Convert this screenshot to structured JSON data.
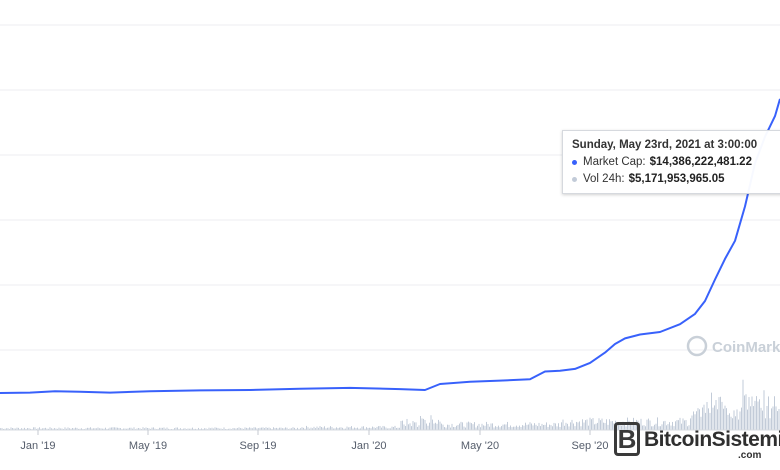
{
  "chart_data": {
    "type": "line",
    "x_ticks": [
      "Jan '19",
      "May '19",
      "Sep '19",
      "Jan '20",
      "May '20",
      "Sep '20"
    ],
    "series": [
      {
        "name": "Market Cap",
        "color": "#3861fb",
        "points": [
          [
            0,
            0.086
          ],
          [
            30,
            0.087
          ],
          [
            55,
            0.09
          ],
          [
            80,
            0.089
          ],
          [
            110,
            0.087
          ],
          [
            150,
            0.09
          ],
          [
            200,
            0.092
          ],
          [
            250,
            0.093
          ],
          [
            300,
            0.096
          ],
          [
            350,
            0.098
          ],
          [
            400,
            0.095
          ],
          [
            425,
            0.093
          ],
          [
            440,
            0.107
          ],
          [
            470,
            0.112
          ],
          [
            500,
            0.115
          ],
          [
            530,
            0.118
          ],
          [
            545,
            0.136
          ],
          [
            560,
            0.138
          ],
          [
            575,
            0.142
          ],
          [
            590,
            0.156
          ],
          [
            605,
            0.18
          ],
          [
            615,
            0.2
          ],
          [
            625,
            0.213
          ],
          [
            640,
            0.222
          ],
          [
            660,
            0.228
          ],
          [
            680,
            0.246
          ],
          [
            695,
            0.27
          ],
          [
            705,
            0.3
          ],
          [
            715,
            0.35
          ],
          [
            725,
            0.398
          ],
          [
            735,
            0.44
          ],
          [
            745,
            0.52
          ],
          [
            755,
            0.62
          ],
          [
            765,
            0.682
          ],
          [
            775,
            0.73
          ],
          [
            780,
            0.77
          ]
        ]
      },
      {
        "name": "Vol 24h",
        "color": "#c2cbd8"
      }
    ],
    "grid": true,
    "watermark": "CoinMark"
  },
  "tooltip": {
    "title": "Sunday, May 23rd, 2021 at 3:00:00",
    "rows": [
      {
        "label": "Market Cap:",
        "value": "$14,386,222,481.22",
        "color": "#3861fb"
      },
      {
        "label": "Vol 24h:",
        "value": "$5,171,953,965.05",
        "color": "#c2cbd8"
      }
    ]
  },
  "logo": {
    "name": "BitcoinSistemi",
    "suffix": ".com"
  }
}
